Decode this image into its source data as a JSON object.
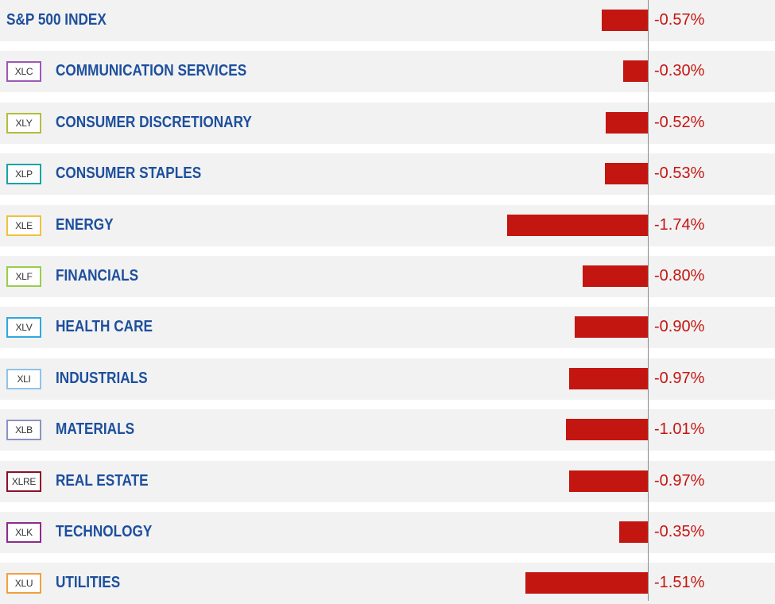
{
  "chart_data": {
    "type": "bar",
    "orientation": "horizontal",
    "index": {
      "label": "S&P 500 INDEX",
      "value": -0.57,
      "value_label": "-0.57%"
    },
    "sectors": [
      {
        "ticker": "XLC",
        "label": "COMMUNICATION SERVICES",
        "value": -0.3,
        "value_label": "-0.30%",
        "color": "#9b59b6"
      },
      {
        "ticker": "XLY",
        "label": "CONSUMER DISCRETIONARY",
        "value": -0.52,
        "value_label": "-0.52%",
        "color": "#b5bd3c"
      },
      {
        "ticker": "XLP",
        "label": "CONSUMER STAPLES",
        "value": -0.53,
        "value_label": "-0.53%",
        "color": "#1aa3a8"
      },
      {
        "ticker": "XLE",
        "label": "ENERGY",
        "value": -1.74,
        "value_label": "-1.74%",
        "color": "#f0c23c"
      },
      {
        "ticker": "XLF",
        "label": "FINANCIALS",
        "value": -0.8,
        "value_label": "-0.80%",
        "color": "#9acd4a"
      },
      {
        "ticker": "XLV",
        "label": "HEALTH CARE",
        "value": -0.9,
        "value_label": "-0.90%",
        "color": "#2fa8de"
      },
      {
        "ticker": "XLI",
        "label": "INDUSTRIALS",
        "value": -0.97,
        "value_label": "-0.97%",
        "color": "#8fc4e6"
      },
      {
        "ticker": "XLB",
        "label": "MATERIALS",
        "value": -1.01,
        "value_label": "-1.01%",
        "color": "#8a93c4"
      },
      {
        "ticker": "XLRE",
        "label": "REAL ESTATE",
        "value": -0.97,
        "value_label": "-0.97%",
        "color": "#8c1028"
      },
      {
        "ticker": "XLK",
        "label": "TECHNOLOGY",
        "value": -0.35,
        "value_label": "-0.35%",
        "color": "#8e2a8c"
      },
      {
        "ticker": "XLU",
        "label": "UTILITIES",
        "value": -1.51,
        "value_label": "-1.51%",
        "color": "#f0a040"
      }
    ],
    "colors": {
      "bar": "#c41610",
      "label": "#1d4f9c",
      "value": "#c41610",
      "row_background": "#f2f2f3"
    }
  }
}
